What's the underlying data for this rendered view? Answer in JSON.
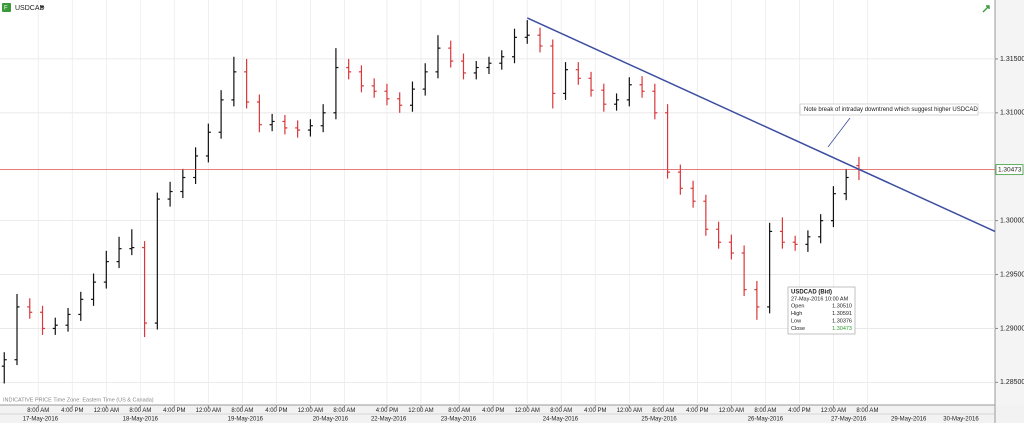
{
  "chart_data": {
    "type": "ohlc",
    "title": "USDCAD",
    "footnote": "INDICATIVE PRICE  Time Zone: Eastern Time (US & Canada)",
    "annotation": "Note break of intraday downtrend which suggest higher USDCAD",
    "x": [
      0,
      3,
      6,
      9,
      12,
      15,
      18,
      21,
      24,
      27,
      30,
      33,
      36,
      39,
      42,
      45,
      48,
      51,
      54,
      57,
      60,
      63,
      66,
      69,
      72,
      75,
      78,
      81,
      84,
      87,
      90,
      93,
      96,
      99,
      102,
      105,
      108,
      111,
      114,
      117,
      120,
      123,
      126,
      129,
      132,
      135,
      138,
      141,
      144,
      147,
      150,
      153,
      156,
      159,
      162,
      165,
      168,
      171,
      174,
      177,
      180,
      183,
      186,
      189,
      192,
      195,
      198,
      201
    ],
    "open": [
      1.2865,
      1.2871,
      1.292,
      1.2915,
      1.29,
      1.2903,
      1.2913,
      1.2927,
      1.2943,
      1.2962,
      1.2974,
      1.2975,
      1.2905,
      1.302,
      1.3027,
      1.304,
      1.306,
      1.3082,
      1.3112,
      1.3138,
      1.311,
      1.3089,
      1.3092,
      1.3086,
      1.3084,
      1.3088,
      1.31,
      1.3142,
      1.3138,
      1.3125,
      1.312,
      1.3113,
      1.3107,
      1.3122,
      1.3138,
      1.316,
      1.3148,
      1.3137,
      1.3142,
      1.3146,
      1.3152,
      1.317,
      1.3172,
      1.3162,
      1.3118,
      1.314,
      1.3132,
      1.3121,
      1.3108,
      1.3112,
      1.3126,
      1.312,
      1.31,
      1.3045,
      1.303,
      1.3018,
      1.2992,
      1.298,
      1.297,
      1.2936,
      1.292,
      1.299,
      1.298,
      1.2978,
      1.2985,
      1.3,
      1.3025,
      1.3051
    ],
    "high": [
      1.2878,
      1.2932,
      1.2928,
      1.2921,
      1.291,
      1.2919,
      1.2934,
      1.2951,
      1.2972,
      1.2985,
      1.2992,
      1.2981,
      1.3026,
      1.3036,
      1.3048,
      1.3068,
      1.309,
      1.3121,
      1.3152,
      1.315,
      1.3117,
      1.3099,
      1.3098,
      1.3093,
      1.3094,
      1.3108,
      1.316,
      1.315,
      1.3144,
      1.3132,
      1.3127,
      1.3119,
      1.3129,
      1.3146,
      1.3172,
      1.3167,
      1.3155,
      1.3148,
      1.3152,
      1.3158,
      1.3178,
      1.3186,
      1.3179,
      1.3168,
      1.3147,
      1.3147,
      1.3138,
      1.3127,
      1.3118,
      1.3133,
      1.3134,
      1.3127,
      1.3108,
      1.3052,
      1.3037,
      1.3024,
      1.2999,
      1.2987,
      1.2977,
      1.2944,
      1.2998,
      1.3003,
      1.2986,
      1.2991,
      1.3006,
      1.3032,
      1.3048,
      1.30591
    ],
    "low": [
      1.2849,
      1.2866,
      1.2909,
      1.2894,
      1.2894,
      1.2897,
      1.2907,
      1.2921,
      1.2937,
      1.2956,
      1.2968,
      1.2892,
      1.2899,
      1.3013,
      1.3021,
      1.3034,
      1.3054,
      1.3076,
      1.3106,
      1.3104,
      1.3082,
      1.3083,
      1.308,
      1.3077,
      1.3078,
      1.3082,
      1.3094,
      1.3131,
      1.3119,
      1.3114,
      1.3107,
      1.31,
      1.3101,
      1.3116,
      1.3132,
      1.3142,
      1.3131,
      1.3131,
      1.3136,
      1.314,
      1.3146,
      1.3164,
      1.3156,
      1.3104,
      1.3112,
      1.3126,
      1.3115,
      1.3101,
      1.3102,
      1.3106,
      1.3114,
      1.3094,
      1.3039,
      1.3024,
      1.3012,
      1.2986,
      1.2974,
      1.2964,
      1.293,
      1.2908,
      1.2914,
      1.2974,
      1.2972,
      1.2971,
      1.2979,
      1.2994,
      1.3019,
      1.30376
    ],
    "close": [
      1.2871,
      1.292,
      1.2915,
      1.29,
      1.2903,
      1.2913,
      1.2927,
      1.2943,
      1.2962,
      1.2974,
      1.2975,
      1.2905,
      1.302,
      1.3027,
      1.304,
      1.306,
      1.3082,
      1.3112,
      1.3138,
      1.311,
      1.3089,
      1.3092,
      1.3086,
      1.3084,
      1.3088,
      1.31,
      1.3142,
      1.3138,
      1.3125,
      1.312,
      1.3113,
      1.3107,
      1.3122,
      1.3138,
      1.316,
      1.3148,
      1.3137,
      1.3142,
      1.3146,
      1.3152,
      1.317,
      1.3172,
      1.3162,
      1.3118,
      1.314,
      1.3132,
      1.3121,
      1.3108,
      1.3112,
      1.3126,
      1.312,
      1.31,
      1.3045,
      1.303,
      1.3018,
      1.2992,
      1.298,
      1.297,
      1.2936,
      1.292,
      1.299,
      1.298,
      1.2978,
      1.2985,
      1.3,
      1.3025,
      1.304,
      1.30473
    ],
    "up_color": "#111111",
    "down_color": "#d9373a",
    "xlim": [
      -1,
      233
    ],
    "ylim": [
      1.2829,
      1.32
    ],
    "yticks": [
      {
        "value": 1.285,
        "label": "1.28500"
      },
      {
        "value": 1.29,
        "label": "1.29000"
      },
      {
        "value": 1.295,
        "label": "1.29500"
      },
      {
        "value": 1.3,
        "label": "1.30000"
      },
      {
        "value": 1.31,
        "label": "1.31000"
      },
      {
        "value": 1.315,
        "label": "1.31500"
      }
    ],
    "xticks": [
      {
        "value": 8,
        "label": "8:00 AM"
      },
      {
        "value": 16,
        "label": "4:00 PM"
      },
      {
        "value": 24,
        "label": "12:00 AM"
      },
      {
        "value": 32,
        "label": "8:00 AM"
      },
      {
        "value": 40,
        "label": "4:00 PM"
      },
      {
        "value": 48,
        "label": "12:00 AM"
      },
      {
        "value": 56,
        "label": "8:00 AM"
      },
      {
        "value": 64,
        "label": "4:00 PM"
      },
      {
        "value": 72,
        "label": "12:00 AM"
      },
      {
        "value": 80,
        "label": "8:00 AM"
      },
      {
        "value": 90,
        "label": "4:00 PM"
      },
      {
        "value": 98,
        "label": "12:00 AM"
      },
      {
        "value": 107,
        "label": "8:00 AM"
      },
      {
        "value": 115,
        "label": "4:00 PM"
      },
      {
        "value": 123,
        "label": "12:00 AM"
      },
      {
        "value": 131,
        "label": "8:00 AM"
      },
      {
        "value": 139,
        "label": "4:00 PM"
      },
      {
        "value": 147,
        "label": "12:00 AM"
      },
      {
        "value": 155,
        "label": "8:00 AM"
      },
      {
        "value": 163,
        "label": "4:00 PM"
      },
      {
        "value": 171,
        "label": "12:00 AM"
      },
      {
        "value": 179,
        "label": "8:00 AM"
      },
      {
        "value": 187,
        "label": "4:00 PM"
      },
      {
        "value": 195,
        "label": "12:00 AM"
      },
      {
        "value": 203,
        "label": "8:00 AM"
      }
    ],
    "date_ticks": [
      {
        "value": 8.5,
        "label": "17-May-2016"
      },
      {
        "value": 32,
        "label": "18-May-2016"
      },
      {
        "value": 56.7,
        "label": "19-May-2016"
      },
      {
        "value": 76.7,
        "label": "20-May-2016"
      },
      {
        "value": 90.4,
        "label": "22-May-2016"
      },
      {
        "value": 106.8,
        "label": "23-May-2016"
      },
      {
        "value": 130.8,
        "label": "24-May-2016"
      },
      {
        "value": 154,
        "label": "25-May-2016"
      },
      {
        "value": 179,
        "label": "26-May-2016"
      },
      {
        "value": 198.6,
        "label": "27-May-2016"
      },
      {
        "value": 212.7,
        "label": "29-May-2016"
      },
      {
        "value": 225,
        "label": "30-May-2016"
      }
    ],
    "last_price": 1.30473,
    "last_price_color": "#e05050",
    "trendline": {
      "x": [
        123,
        233
      ],
      "y": [
        1.3188,
        1.299
      ],
      "color": "#3b4ea0"
    },
    "grid": true,
    "tooltip": {
      "title": "USDCAD (Bid)",
      "time": "27-May-2016 10:00 AM",
      "rows": [
        [
          "Open",
          "1.30510"
        ],
        [
          "High",
          "1.30591"
        ],
        [
          "Low",
          "1.30376"
        ],
        [
          "Close",
          "1.30473"
        ]
      ]
    }
  }
}
